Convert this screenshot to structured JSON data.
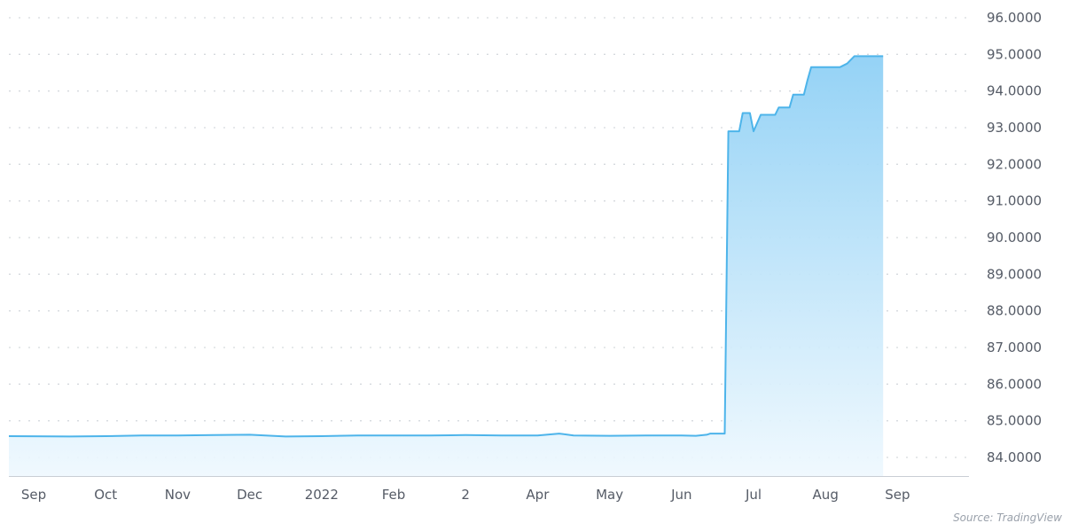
{
  "chart_data": {
    "type": "area",
    "title": "",
    "xlabel": "",
    "ylabel": "",
    "ylim": [
      83.5,
      96.2
    ],
    "grid": true,
    "legend": "none",
    "y_ticks": [
      84,
      85,
      86,
      87,
      88,
      89,
      90,
      91,
      92,
      93,
      94,
      95,
      96
    ],
    "y_tick_labels": [
      "84.0000",
      "85.0000",
      "86.0000",
      "87.0000",
      "88.0000",
      "89.0000",
      "90.0000",
      "91.0000",
      "92.0000",
      "93.0000",
      "94.0000",
      "95.0000",
      "96.0000"
    ],
    "x_tick_labels": [
      "Sep",
      "Oct",
      "Nov",
      "Dec",
      "2022",
      "Feb",
      "2",
      "Apr",
      "May",
      "Jun",
      "Jul",
      "Aug",
      "Sep"
    ],
    "x_tick_positions": [
      0,
      1,
      2,
      3,
      4,
      5,
      6,
      7,
      8,
      9,
      10,
      11,
      12
    ],
    "x": [
      0.0,
      0.5,
      1.0,
      1.5,
      2.0,
      2.5,
      3.0,
      3.5,
      4.0,
      4.5,
      5.0,
      5.5,
      6.0,
      6.5,
      7.0,
      7.3,
      7.5,
      8.0,
      8.5,
      9.0,
      9.2,
      9.35,
      9.4,
      9.6,
      9.65,
      9.7,
      9.8,
      9.85,
      9.95,
      10.0,
      10.1,
      10.2,
      10.3,
      10.35,
      10.5,
      10.55,
      10.7,
      10.75,
      10.8,
      11.0,
      11.05,
      11.1,
      11.2,
      11.3,
      11.4,
      11.45,
      11.8
    ],
    "series": [
      {
        "name": "",
        "values": [
          84.58,
          84.57,
          84.58,
          84.6,
          84.6,
          84.61,
          84.62,
          84.57,
          84.58,
          84.6,
          84.6,
          84.6,
          84.61,
          84.6,
          84.6,
          84.65,
          84.6,
          84.59,
          84.6,
          84.6,
          84.59,
          84.62,
          84.65,
          84.65,
          92.9,
          92.9,
          92.9,
          93.4,
          93.4,
          92.9,
          93.35,
          93.35,
          93.35,
          93.55,
          93.55,
          93.9,
          93.9,
          94.3,
          94.65,
          94.65,
          94.65,
          94.65,
          94.65,
          94.75,
          94.95,
          94.95,
          94.95
        ]
      }
    ],
    "colors": {
      "line": "#4db4ea",
      "fill_top": "#8fd0f5",
      "fill_bottom": "#eef8fe",
      "grid": "#d5d9de",
      "axis": "#c9ced4"
    }
  },
  "source_text": "Source: TradingView"
}
